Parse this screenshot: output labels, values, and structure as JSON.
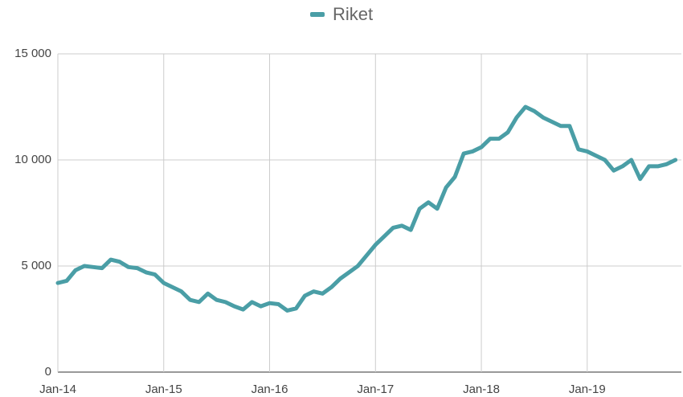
{
  "chart_data": {
    "type": "line",
    "categories": [
      "Jan-14",
      null,
      null,
      null,
      null,
      null,
      null,
      null,
      null,
      null,
      null,
      null,
      "Jan-15",
      null,
      null,
      null,
      null,
      null,
      null,
      null,
      null,
      null,
      null,
      null,
      "Jan-16",
      null,
      null,
      null,
      null,
      null,
      null,
      null,
      null,
      null,
      null,
      null,
      "Jan-17",
      null,
      null,
      null,
      null,
      null,
      null,
      null,
      null,
      null,
      null,
      null,
      "Jan-18",
      null,
      null,
      null,
      null,
      null,
      null,
      null,
      null,
      null,
      null,
      null,
      "Jan-19",
      null,
      null,
      null,
      null,
      null,
      null,
      null,
      null,
      null,
      null
    ],
    "series": [
      {
        "name": "Riket",
        "color": "#4a9ea6",
        "values": [
          4200,
          4300,
          4800,
          5000,
          4950,
          4900,
          5300,
          5200,
          4950,
          4900,
          4700,
          4600,
          4200,
          4000,
          3800,
          3400,
          3300,
          3700,
          3400,
          3300,
          3100,
          2950,
          3300,
          3100,
          3250,
          3200,
          2900,
          3000,
          3600,
          3800,
          3700,
          4000,
          4400,
          4700,
          5000,
          5500,
          6000,
          6400,
          6800,
          6900,
          6700,
          7700,
          8000,
          7700,
          8700,
          9200,
          10300,
          10400,
          10600,
          11000,
          11000,
          11300,
          12000,
          12500,
          12300,
          12000,
          11800,
          11600,
          11600,
          10500,
          10400,
          10200,
          10000,
          9500,
          9700,
          10000,
          9100,
          9700,
          9700,
          9800,
          10000
        ]
      }
    ],
    "ylim": [
      0,
      15000
    ],
    "yticks": [
      0,
      {
        "value": 5000,
        "label": "5 000"
      },
      {
        "value": 10000,
        "label": "10 000"
      },
      {
        "value": 15000,
        "label": "15 000"
      }
    ],
    "grid": true,
    "legend": "top"
  }
}
